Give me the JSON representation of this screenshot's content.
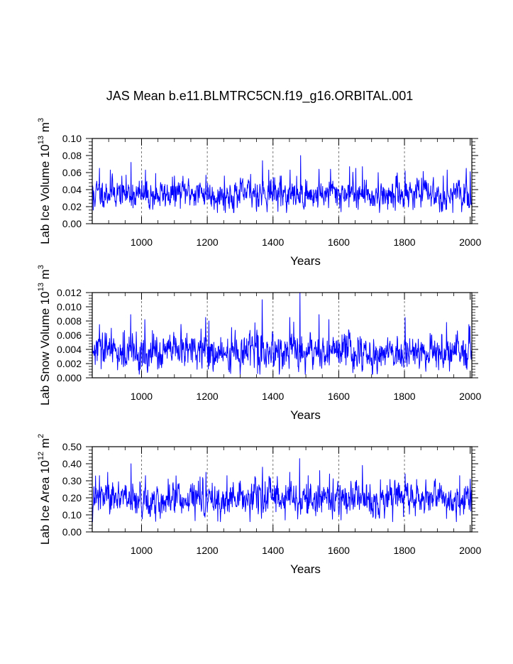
{
  "title": "JAS Mean b.e11.BLMTRC5CN.f19_g16.ORBITAL.001",
  "colors": {
    "series": "#0000ff",
    "axes": "#000000",
    "grid": "#555555"
  },
  "chart_data": [
    {
      "type": "line",
      "id": "ice-volume",
      "ylabel": "Lab Ice Volume 10",
      "ylabel_exp": "13",
      "ylabel_unit": " m",
      "ylabel_unit_exp": "3",
      "xlabel": "Years",
      "xlim": [
        850,
        2005
      ],
      "ylim": [
        0,
        0.1
      ],
      "xticks": [
        1000,
        1200,
        1400,
        1600,
        1800,
        2000
      ],
      "xtick_labels": [
        "1000",
        "1200",
        "1400",
        "1600",
        "1800",
        "2000"
      ],
      "yticks": [
        0,
        0.02,
        0.04,
        0.06,
        0.08,
        0.1
      ],
      "ytick_labels": [
        "0.00",
        "0.02",
        "0.04",
        "0.06",
        "0.08",
        "0.10"
      ],
      "grid_x": true,
      "series": [
        {
          "name": "JAS mean",
          "baseline": 0.035,
          "noise_sd": 0.008,
          "clip": [
            0.013,
            0.08
          ],
          "seed": 11,
          "peaks": [
            [
              853,
              0.016
            ],
            [
              858,
              0.02
            ],
            [
              872,
              0.065
            ],
            [
              905,
              0.063
            ],
            [
              968,
              0.072
            ],
            [
              1012,
              0.063
            ],
            [
              1043,
              0.059
            ],
            [
              1196,
              0.057
            ],
            [
              1252,
              0.056
            ],
            [
              1332,
              0.058
            ],
            [
              1368,
              0.074
            ],
            [
              1387,
              0.063
            ],
            [
              1425,
              0.056
            ],
            [
              1452,
              0.063
            ],
            [
              1484,
              0.08
            ],
            [
              1540,
              0.064
            ],
            [
              1575,
              0.064
            ],
            [
              1607,
              0.014
            ],
            [
              1633,
              0.067
            ],
            [
              1652,
              0.065
            ],
            [
              1672,
              0.067
            ],
            [
              1720,
              0.06
            ],
            [
              1802,
              0.062
            ],
            [
              1930,
              0.063
            ],
            [
              2000,
              0.061
            ]
          ]
        }
      ]
    },
    {
      "type": "line",
      "id": "snow-volume",
      "ylabel": "Lab Snow Volume 10",
      "ylabel_exp": "13",
      "ylabel_unit": " m",
      "ylabel_unit_exp": "3",
      "xlabel": "Years",
      "xlim": [
        850,
        2005
      ],
      "ylim": [
        0,
        0.012
      ],
      "xticks": [
        1000,
        1200,
        1400,
        1600,
        1800,
        2000
      ],
      "xtick_labels": [
        "1000",
        "1200",
        "1400",
        "1600",
        "1800",
        "2000"
      ],
      "yticks": [
        0,
        0.002,
        0.004,
        0.006,
        0.008,
        0.01,
        0.012
      ],
      "ytick_labels": [
        "0.000",
        "0.002",
        "0.004",
        "0.006",
        "0.008",
        "0.010",
        "0.012"
      ],
      "grid_x": true,
      "series": [
        {
          "name": "JAS mean",
          "baseline": 0.0036,
          "noise_sd": 0.0012,
          "clip": [
            0.0005,
            0.012
          ],
          "seed": 29,
          "peaks": [
            [
              872,
              0.0075
            ],
            [
              967,
              0.0089
            ],
            [
              1010,
              0.0082
            ],
            [
              1195,
              0.0085
            ],
            [
              1205,
              0.008
            ],
            [
              1367,
              0.011
            ],
            [
              1398,
              0.0065
            ],
            [
              1451,
              0.0085
            ],
            [
              1482,
              0.012
            ],
            [
              1487,
              0.0058
            ],
            [
              1540,
              0.0089
            ],
            [
              1570,
              0.0082
            ],
            [
              1802,
              0.0085
            ],
            [
              1928,
              0.0078
            ],
            [
              1996,
              0.0075
            ],
            [
              1353,
              0.0006
            ]
          ]
        }
      ]
    },
    {
      "type": "line",
      "id": "ice-area",
      "ylabel": "Lab Ice Area 10",
      "ylabel_exp": "12",
      "ylabel_unit": " m",
      "ylabel_unit_exp": "2",
      "xlabel": "Years",
      "xlim": [
        850,
        2005
      ],
      "ylim": [
        0,
        0.5
      ],
      "xticks": [
        1000,
        1200,
        1400,
        1600,
        1800,
        2000
      ],
      "xtick_labels": [
        "1000",
        "1200",
        "1400",
        "1600",
        "1800",
        "2000"
      ],
      "yticks": [
        0,
        0.1,
        0.2,
        0.3,
        0.4,
        0.5
      ],
      "ytick_labels": [
        "0.00",
        "0.10",
        "0.20",
        "0.30",
        "0.40",
        "0.50"
      ],
      "grid_x": true,
      "series": [
        {
          "name": "JAS mean",
          "baseline": 0.19,
          "noise_sd": 0.045,
          "clip": [
            0.06,
            0.43
          ],
          "seed": 47,
          "peaks": [
            [
              872,
              0.33
            ],
            [
              897,
              0.35
            ],
            [
              968,
              0.4
            ],
            [
              1012,
              0.33
            ],
            [
              1196,
              0.35
            ],
            [
              1260,
              0.33
            ],
            [
              1368,
              0.38
            ],
            [
              1451,
              0.35
            ],
            [
              1481,
              0.43
            ],
            [
              1507,
              0.33
            ],
            [
              1542,
              0.36
            ],
            [
              1572,
              0.34
            ],
            [
              1607,
              0.07
            ],
            [
              1672,
              0.39
            ],
            [
              1802,
              0.34
            ],
            [
              1968,
              0.33
            ],
            [
              2000,
              0.31
            ]
          ]
        }
      ]
    }
  ]
}
